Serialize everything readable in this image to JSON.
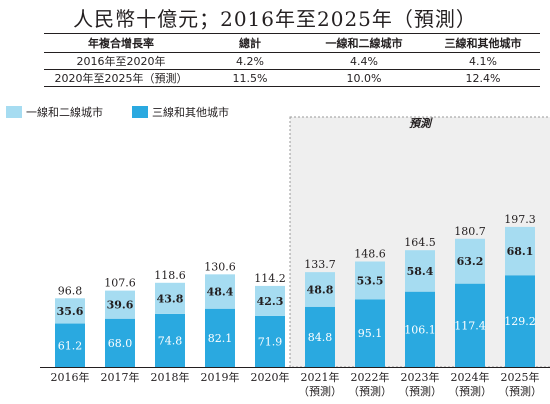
{
  "title": "人民幣十億元；2016年至2025年（預測）",
  "cagr_table": {
    "headers": [
      "年複合增長率",
      "總計",
      "一線和二線城市",
      "三線和其他城市"
    ],
    "rows": [
      [
        "2016年至2020年",
        "4.2%",
        "4.4%",
        "4.1%"
      ],
      [
        "2020年至2025年（預測）",
        "11.5%",
        "10.0%",
        "12.4%"
      ]
    ]
  },
  "forecast_label": "預測",
  "colors": {
    "tier12": "#a6dcf1",
    "tier3": "#2aa9e0",
    "forecast_bg": "#efefef"
  },
  "chart_data": {
    "type": "bar",
    "stacked": true,
    "categories": [
      "2016年",
      "2017年",
      "2018年",
      "2019年",
      "2020年",
      "2021年（預測）",
      "2022年（預測）",
      "2023年（預測）",
      "2024年（預測）",
      "2025年（預測）"
    ],
    "category_lines": [
      [
        "2016年"
      ],
      [
        "2017年"
      ],
      [
        "2018年"
      ],
      [
        "2019年"
      ],
      [
        "2020年"
      ],
      [
        "2021年",
        "（預測）"
      ],
      [
        "2022年",
        "（預測）"
      ],
      [
        "2023年",
        "（預測）"
      ],
      [
        "2024年",
        "（預測）"
      ],
      [
        "2025年",
        "（預測）"
      ]
    ],
    "series": [
      {
        "name": "三線和其他城市",
        "values": [
          61.2,
          68.0,
          74.8,
          82.1,
          71.9,
          84.8,
          95.1,
          106.1,
          117.4,
          129.2
        ]
      },
      {
        "name": "一線和二線城市",
        "values": [
          35.6,
          39.6,
          43.8,
          48.4,
          42.3,
          48.8,
          53.5,
          58.4,
          63.2,
          68.1
        ]
      }
    ],
    "totals": [
      96.8,
      107.6,
      118.6,
      130.6,
      114.2,
      133.7,
      148.6,
      164.5,
      180.7,
      197.3
    ],
    "forecast_from_index": 5,
    "legend_position": "top-left"
  }
}
